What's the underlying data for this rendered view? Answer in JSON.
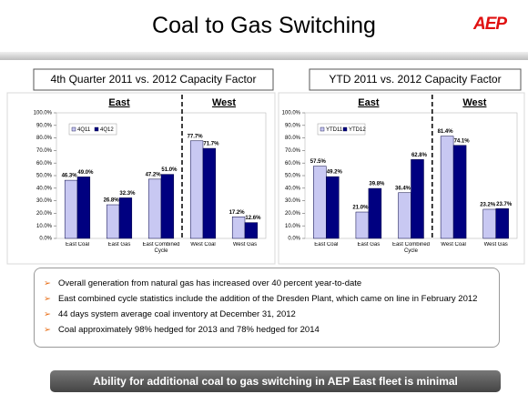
{
  "header": {
    "title": "Coal to Gas Switching",
    "logo": "AEP"
  },
  "chart_data": [
    {
      "type": "bar",
      "title": "4th Quarter 2011 vs. 2012 Capacity Factor",
      "groups": [
        "East",
        "West"
      ],
      "categories": [
        "East Coal",
        "East Gas",
        "East Combined Cycle",
        "West Coal",
        "West Gas"
      ],
      "series": [
        {
          "name": "4Q11",
          "color": "#c8c8f2",
          "values": [
            46.3,
            26.8,
            47.2,
            77.7,
            17.2
          ],
          "value_labels": [
            "46.3%",
            "26.8%",
            "47.2%",
            "77.7%",
            "17.2%"
          ]
        },
        {
          "name": "4Q12",
          "color": "#000080",
          "values": [
            49.0,
            32.3,
            51.0,
            71.7,
            12.6
          ],
          "value_labels": [
            "49.0%",
            "32.3%",
            "51.0%",
            "71.7%",
            "12.6%"
          ]
        }
      ],
      "ylim": [
        0,
        100
      ],
      "yticks": [
        {
          "value": 0,
          "label": "0.0%"
        },
        {
          "value": 10,
          "label": "10.0%"
        },
        {
          "value": 20,
          "label": "20.0%"
        },
        {
          "value": 30,
          "label": "30.0%"
        },
        {
          "value": 40,
          "label": "40.0%"
        },
        {
          "value": 50,
          "label": "50.0%"
        },
        {
          "value": 60,
          "label": "60.0%"
        },
        {
          "value": 70,
          "label": "70.0%"
        },
        {
          "value": 80,
          "label": "80.0%"
        },
        {
          "value": 90,
          "label": "90.0%"
        },
        {
          "value": 100,
          "label": "100.0%"
        }
      ],
      "legend": "upper left"
    },
    {
      "type": "bar",
      "title": "YTD 2011 vs. 2012 Capacity Factor",
      "groups": [
        "East",
        "West"
      ],
      "categories": [
        "East Coal",
        "East Gas",
        "East Combined Cycle",
        "West Coal",
        "West Gas"
      ],
      "series": [
        {
          "name": "YTD11",
          "color": "#c8c8f2",
          "values": [
            57.5,
            21.0,
            36.4,
            81.4,
            23.2
          ],
          "value_labels": [
            "57.5%",
            "21.0%",
            "36.4%",
            "81.4%",
            "23.2%"
          ]
        },
        {
          "name": "YTD12",
          "color": "#000080",
          "values": [
            49.2,
            39.8,
            62.8,
            74.1,
            23.7
          ],
          "value_labels": [
            "49.2%",
            "39.8%",
            "62.8%",
            "74.1%",
            "23.7%"
          ]
        }
      ],
      "ylim": [
        0,
        100
      ],
      "yticks": [
        {
          "value": 0,
          "label": "0.0%"
        },
        {
          "value": 10,
          "label": "10.0%"
        },
        {
          "value": 20,
          "label": "20.0%"
        },
        {
          "value": 30,
          "label": "30.0%"
        },
        {
          "value": 40,
          "label": "40.0%"
        },
        {
          "value": 50,
          "label": "50.0%"
        },
        {
          "value": 60,
          "label": "60.0%"
        },
        {
          "value": 70,
          "label": "70.0%"
        },
        {
          "value": 80,
          "label": "80.0%"
        },
        {
          "value": 90,
          "label": "90.0%"
        },
        {
          "value": 100,
          "label": "100.0%"
        }
      ],
      "legend": "upper left"
    }
  ],
  "bullets": [
    "Overall generation from natural gas has increased over 40 percent year-to-date",
    "East combined cycle statistics include the addition of the Dresden Plant, which came on line in February 2012",
    "44 days system average coal inventory at December 31, 2012",
    "Coal approximately 98% hedged for 2013 and 78% hedged for 2014"
  ],
  "banner": "Ability for additional coal to gas switching in AEP East fleet is minimal"
}
